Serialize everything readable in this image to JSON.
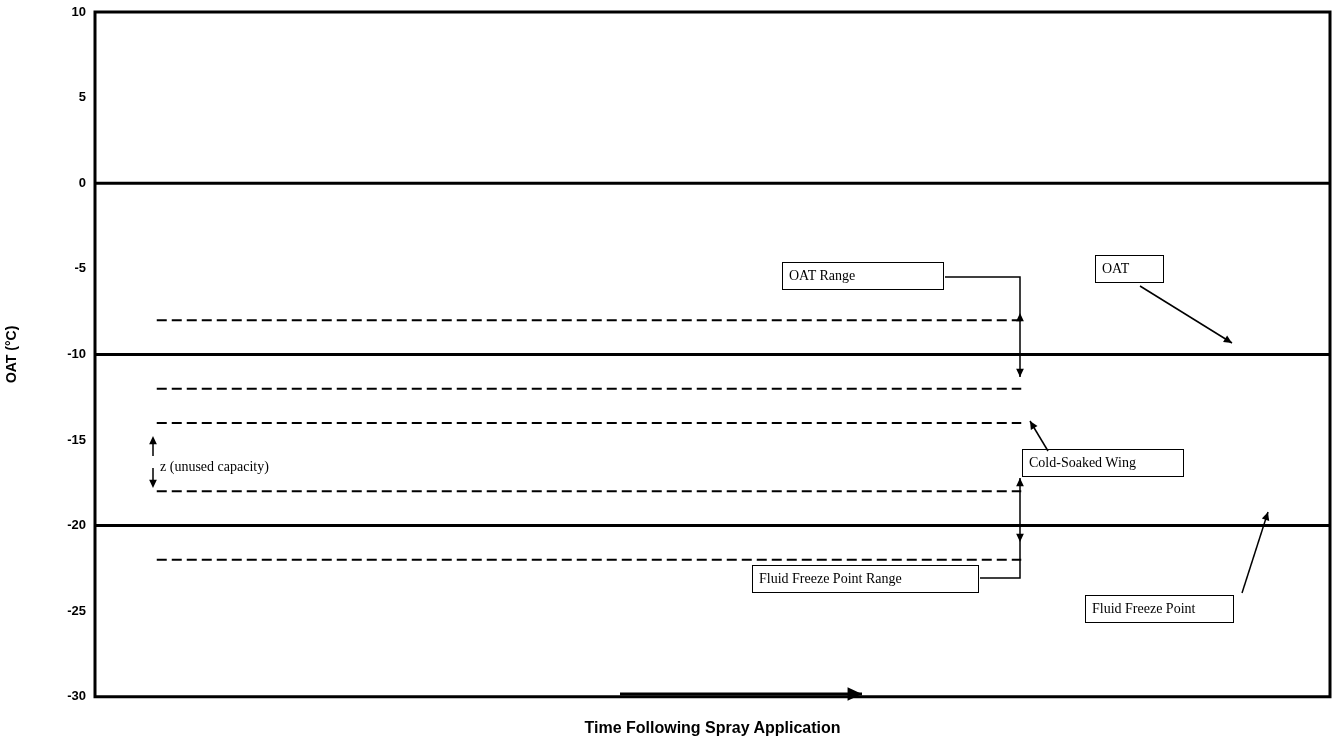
{
  "chart_data": {
    "type": "line",
    "xlabel": "Time Following Spray Application",
    "ylabel": "OAT (°C)",
    "categories": [
      null,
      null,
      null,
      null,
      null,
      null,
      null,
      null,
      null,
      null
    ],
    "series": [
      {
        "color": "#000000",
        "values": [
          -8,
          -8,
          -8,
          -8,
          -8,
          -8,
          -8,
          -8,
          null,
          null
        ]
      },
      {
        "color": "#000000",
        "values": [
          -12,
          -12,
          -12,
          -12,
          -12,
          -12,
          -12,
          -12,
          null,
          null
        ]
      },
      {
        "color": "#000000",
        "values": [
          -14,
          -14,
          -14,
          -14,
          -14,
          -14,
          -14,
          -14,
          null,
          null
        ]
      },
      {
        "color": "#000000",
        "values": [
          -18,
          -18,
          -18,
          -18,
          -18,
          -18,
          -18,
          -18,
          null,
          null
        ]
      },
      {
        "color": "#000000",
        "values": [
          -22,
          -22,
          -22,
          -22,
          -22,
          -22,
          -22,
          -22,
          null,
          null
        ]
      }
    ],
    "line_style": "dashed",
    "ref_lines": [
      {
        "axis": "y",
        "value": 0,
        "color": "#000000",
        "line_style": "solid"
      },
      {
        "axis": "y",
        "value": -10,
        "color": "#000000",
        "line_style": "solid"
      },
      {
        "axis": "y",
        "value": -20,
        "color": "#000000",
        "line_style": "solid"
      }
    ],
    "ylim": [
      -30,
      10
    ],
    "yticks": [
      -30,
      -25,
      -20,
      -15,
      -10,
      -5,
      0,
      5,
      10
    ],
    "grid": false,
    "legend": false,
    "marker": "none",
    "tick_labels": "y",
    "annotations": [
      "OAT Range",
      "OAT",
      "Cold-Soaked Wing",
      "z (unused capacity)",
      "Fluid Freeze Point Range",
      "Fluid Freeze Point"
    ]
  }
}
